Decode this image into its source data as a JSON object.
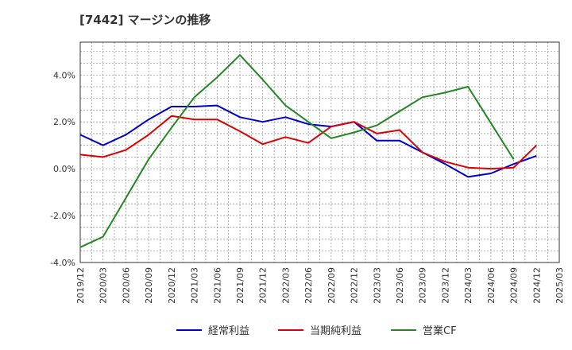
{
  "chart_data": {
    "type": "line",
    "title": "[7442]  マージンの推移",
    "x": [
      "2019/12",
      "2020/03",
      "2020/06",
      "2020/09",
      "2020/12",
      "2021/03",
      "2021/06",
      "2021/09",
      "2021/12",
      "2022/03",
      "2022/06",
      "2022/09",
      "2022/12",
      "2023/03",
      "2023/06",
      "2023/09",
      "2023/12",
      "2024/03",
      "2024/06",
      "2024/09",
      "2024/12",
      "2025/03"
    ],
    "y_ticks": [
      "-4.0%",
      "-2.0%",
      "0.0%",
      "2.0%",
      "4.0%"
    ],
    "ylim": [
      -4.0,
      5.4
    ],
    "grid": true,
    "legend_position": "bottom",
    "series": [
      {
        "name": "経常利益",
        "color": "#0000cc",
        "values": [
          1.45,
          1.0,
          1.45,
          2.1,
          2.65,
          2.65,
          2.7,
          2.2,
          2.0,
          2.2,
          1.9,
          1.8,
          2.0,
          1.2,
          1.2,
          0.7,
          0.2,
          -0.35,
          -0.2,
          0.2,
          0.55,
          null
        ]
      },
      {
        "name": "当期純利益",
        "color": "#dd0000",
        "values": [
          0.6,
          0.5,
          0.8,
          1.45,
          2.25,
          2.1,
          2.1,
          1.6,
          1.05,
          1.35,
          1.1,
          1.8,
          2.0,
          1.5,
          1.65,
          0.7,
          0.3,
          0.05,
          0.0,
          0.05,
          1.0,
          null
        ]
      },
      {
        "name": "営業CF",
        "color": "#228822",
        "values": [
          -3.35,
          -2.9,
          -1.25,
          0.4,
          1.75,
          3.05,
          3.9,
          4.85,
          3.8,
          2.7,
          2.0,
          1.3,
          1.55,
          1.85,
          2.45,
          3.05,
          3.25,
          3.5,
          1.95,
          0.4,
          null,
          null
        ]
      }
    ]
  }
}
